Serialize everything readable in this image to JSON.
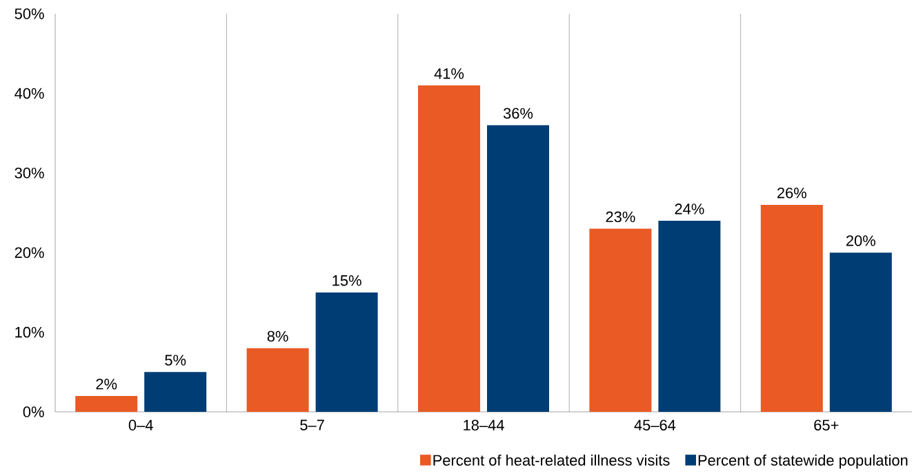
{
  "chart_data": {
    "type": "bar",
    "categories": [
      "0–4",
      "5–7",
      "18–44",
      "45–64",
      "65+"
    ],
    "series": [
      {
        "name": "Percent of heat-related illness visits",
        "color": "#e95a25",
        "values": [
          2,
          8,
          41,
          23,
          26
        ],
        "value_labels": [
          "2%",
          "8%",
          "41%",
          "23%",
          "26%"
        ]
      },
      {
        "name": "Percent of statewide population",
        "color": "#003d75",
        "values": [
          5,
          15,
          36,
          24,
          20
        ],
        "value_labels": [
          "5%",
          "15%",
          "36%",
          "24%",
          "20%"
        ]
      }
    ],
    "ylim": [
      0,
      50
    ],
    "yticks": [
      {
        "value": 0,
        "label": "0%"
      },
      {
        "value": 10,
        "label": "10%"
      },
      {
        "value": 20,
        "label": "20%"
      },
      {
        "value": 30,
        "label": "30%"
      },
      {
        "value": 40,
        "label": "40%"
      },
      {
        "value": 50,
        "label": "50%"
      }
    ],
    "grid": "x",
    "legend": "bottom right"
  }
}
